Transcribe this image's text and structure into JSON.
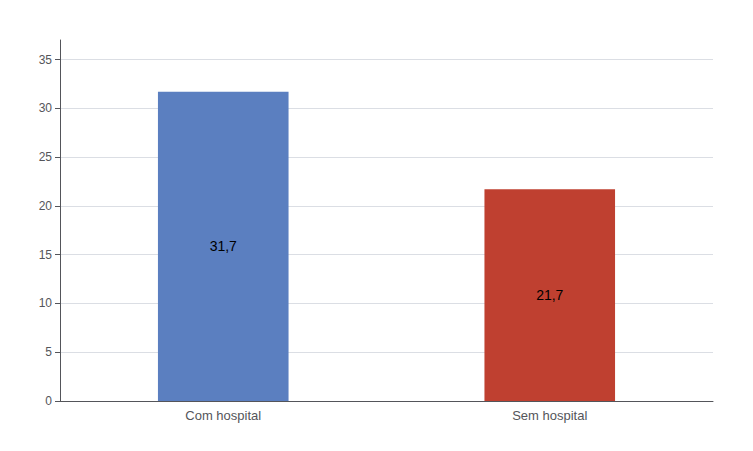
{
  "chart_data": {
    "type": "bar",
    "categories": [
      "Com hospital",
      "Sem hospital"
    ],
    "values": [
      31.7,
      21.7
    ],
    "value_labels": [
      "31,7",
      "21,7"
    ],
    "colors": [
      "#5b7fc0",
      "#bf4030"
    ],
    "ylim": [
      0,
      37
    ],
    "yticks": [
      0,
      5,
      10,
      15,
      20,
      25,
      30,
      35
    ],
    "grid": true,
    "data_labels": true
  }
}
